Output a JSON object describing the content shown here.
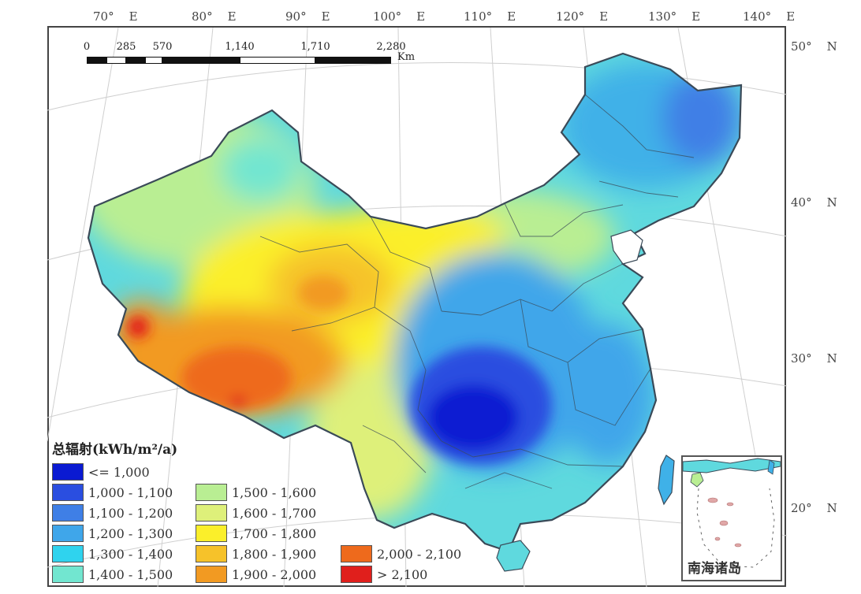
{
  "longitudes": [
    {
      "deg": "70°",
      "hemi": "E"
    },
    {
      "deg": "80°",
      "hemi": "E"
    },
    {
      "deg": "90°",
      "hemi": "E"
    },
    {
      "deg": "100°",
      "hemi": "E"
    },
    {
      "deg": "110°",
      "hemi": "E"
    },
    {
      "deg": "120°",
      "hemi": "E"
    },
    {
      "deg": "130°",
      "hemi": "E"
    },
    {
      "deg": "140°",
      "hemi": "E"
    }
  ],
  "latitudes": [
    {
      "deg": "50°",
      "hemi": "N"
    },
    {
      "deg": "40°",
      "hemi": "N"
    },
    {
      "deg": "30°",
      "hemi": "N"
    },
    {
      "deg": "20°",
      "hemi": "N"
    }
  ],
  "scale_bar": {
    "ticks": [
      "0",
      "285",
      "570",
      "1,140",
      "1,710",
      "2,280"
    ],
    "unit": "Km"
  },
  "legend": {
    "title": "总辐射(kWh/m²/a)",
    "items": [
      {
        "label": "<= 1,000",
        "color": "#0a1ad2"
      },
      {
        "label": "1,000 - 1,100",
        "color": "#2a4ee0"
      },
      {
        "label": "1,100 - 1,200",
        "color": "#3f7fe6"
      },
      {
        "label": "1,200 - 1,300",
        "color": "#3fa6ea"
      },
      {
        "label": "1,300 - 1,400",
        "color": "#2fd3ee"
      },
      {
        "label": "1,400 - 1,500",
        "color": "#72e6d0"
      },
      {
        "label": "1,500 - 1,600",
        "color": "#b9ee93"
      },
      {
        "label": "1,600 - 1,700",
        "color": "#def07a"
      },
      {
        "label": "1,700 - 1,800",
        "color": "#fbef2a"
      },
      {
        "label": "1,800 - 1,900",
        "color": "#f6c22a"
      },
      {
        "label": "1,900 - 2,000",
        "color": "#f29a22"
      },
      {
        "label": "2,000 - 2,100",
        "color": "#ee6a1c"
      },
      {
        "label": "> 2,100",
        "color": "#e01f1c"
      }
    ]
  },
  "inset": {
    "label": "南海诸岛"
  }
}
